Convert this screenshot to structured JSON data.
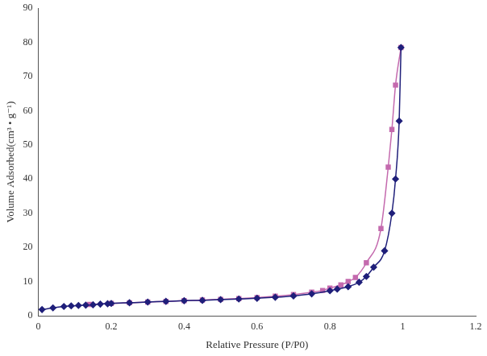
{
  "chart_data": {
    "type": "scatter",
    "x_label": "Relative Pressure (P/P0)",
    "y_label": "Volume Adsorbed(cm³ • g⁻¹)",
    "xlim": [
      0,
      1.2
    ],
    "xticks": [
      0,
      0.2,
      0.4,
      0.6,
      0.8,
      1,
      1.2
    ],
    "ylim": [
      0,
      90
    ],
    "yticks": [
      0,
      10,
      20,
      30,
      40,
      50,
      60,
      70,
      80,
      90
    ],
    "grid": false,
    "series": [
      {
        "color": "#1f1f7a",
        "marker": "diamond",
        "line_style": "solid",
        "x": [
          0.01,
          0.04,
          0.07,
          0.09,
          0.11,
          0.13,
          0.15,
          0.17,
          0.19,
          0.2,
          0.25,
          0.3,
          0.35,
          0.4,
          0.45,
          0.5,
          0.55,
          0.6,
          0.65,
          0.7,
          0.75,
          0.8,
          0.82,
          0.85,
          0.88,
          0.9,
          0.92,
          0.95,
          0.97,
          0.98,
          0.99,
          0.995
        ],
        "values": [
          1.8,
          2.3,
          2.7,
          2.9,
          3.0,
          3.1,
          3.2,
          3.4,
          3.5,
          3.6,
          3.8,
          4.0,
          4.2,
          4.4,
          4.5,
          4.7,
          4.9,
          5.1,
          5.4,
          5.8,
          6.4,
          7.3,
          7.8,
          8.5,
          9.8,
          11.5,
          14.2,
          19,
          30,
          40,
          57,
          78.5
        ]
      },
      {
        "color": "#c46aae",
        "marker": "square",
        "line_style": "solid",
        "x": [
          0.14,
          0.2,
          0.25,
          0.3,
          0.35,
          0.4,
          0.45,
          0.5,
          0.55,
          0.6,
          0.65,
          0.7,
          0.75,
          0.78,
          0.8,
          0.83,
          0.85,
          0.87,
          0.9,
          0.94,
          0.96,
          0.97,
          0.98,
          0.995
        ],
        "values": [
          3.3,
          3.6,
          3.8,
          4.0,
          4.2,
          4.4,
          4.6,
          4.8,
          5.0,
          5.3,
          5.7,
          6.2,
          6.9,
          7.4,
          8.1,
          9.0,
          10,
          11.2,
          15.5,
          25.5,
          43.5,
          54.5,
          67.5,
          78.5
        ]
      }
    ]
  }
}
